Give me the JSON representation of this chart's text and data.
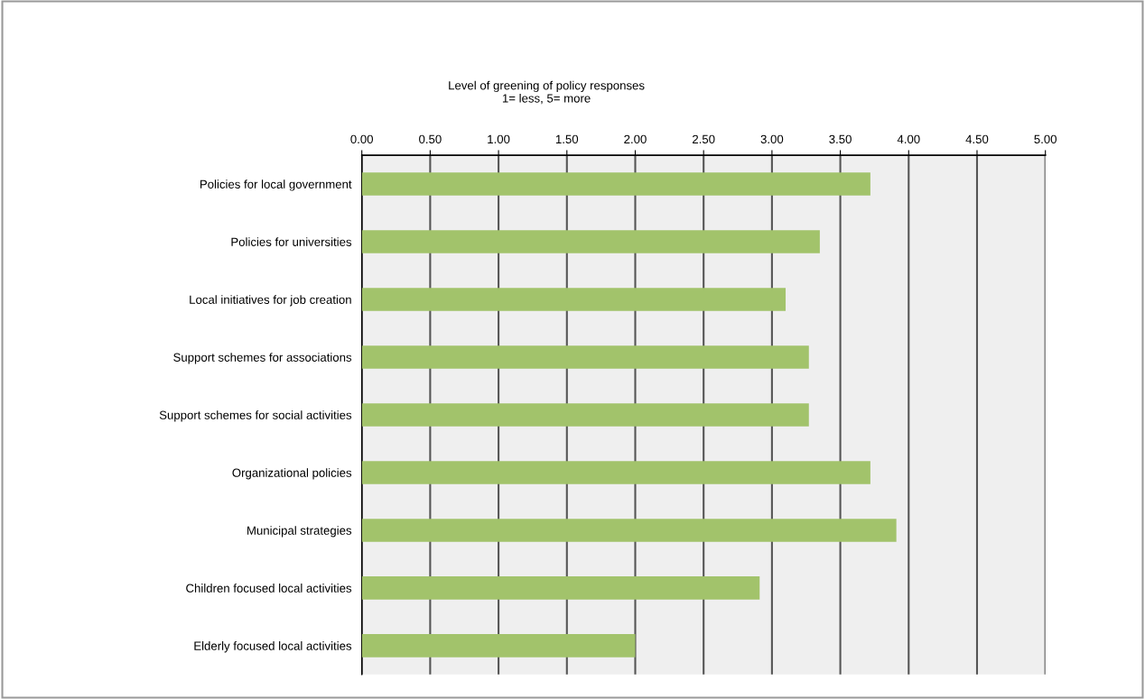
{
  "chart_data": {
    "type": "bar",
    "orientation": "horizontal",
    "title": "Level of greening of policy responses\n1= less, 5= more",
    "categories": [
      "Policies for local government",
      "Policies for universities",
      "Local initiatives for job creation",
      "Support schemes for associations",
      "Support schemes for social activities",
      "Organizational policies",
      "Municipal strategies",
      "Children focused local activities",
      "Elderly focused local activities"
    ],
    "values": [
      3.72,
      3.35,
      3.1,
      3.27,
      3.27,
      3.72,
      3.91,
      2.91,
      2.0
    ],
    "color": "#a2c36b",
    "xlim": [
      0,
      5
    ],
    "xticks": [
      {
        "value": 0,
        "label": "0.00"
      },
      {
        "value": 0.5,
        "label": "0.50"
      },
      {
        "value": 1,
        "label": "1.00"
      },
      {
        "value": 1.5,
        "label": "1.50"
      },
      {
        "value": 2,
        "label": "2.00"
      },
      {
        "value": 2.5,
        "label": "2.50"
      },
      {
        "value": 3,
        "label": "3.00"
      },
      {
        "value": 3.5,
        "label": "3.50"
      },
      {
        "value": 4,
        "label": "4.00"
      },
      {
        "value": 4.5,
        "label": "4.50"
      },
      {
        "value": 5,
        "label": "5.00"
      }
    ],
    "grid": "x"
  }
}
